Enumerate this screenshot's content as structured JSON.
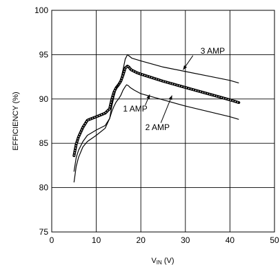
{
  "chart_data": {
    "type": "line",
    "xlabel_main": "V",
    "xlabel_sub": "IN",
    "xlabel_unit": " (V)",
    "ylabel": "EFFICIENCY (%)",
    "xlim": [
      0,
      50
    ],
    "ylim": [
      75,
      100
    ],
    "x_ticks": [
      0,
      10,
      20,
      30,
      40,
      50
    ],
    "y_ticks": [
      75,
      80,
      85,
      90,
      95,
      100
    ],
    "grid": true,
    "series": [
      {
        "name": "1 AMP",
        "style": "thin",
        "x": [
          5,
          5.5,
          6,
          7,
          8,
          10,
          12,
          13,
          13.5,
          14,
          14.5,
          15,
          15.5,
          16,
          16.5,
          16.8,
          17.2,
          17.6,
          18.5,
          20,
          25,
          30,
          35,
          40,
          42
        ],
        "y": [
          81.8,
          83.4,
          84.2,
          85.2,
          85.9,
          86.5,
          87.0,
          87.8,
          88.6,
          89.2,
          89.7,
          90.0,
          90.4,
          91.0,
          91.4,
          91.6,
          91.5,
          91.3,
          91.0,
          90.6,
          89.9,
          89.2,
          88.6,
          88.0,
          87.7
        ]
      },
      {
        "name": "2 AMP",
        "style": "bold",
        "x": [
          5,
          5.5,
          6,
          7,
          8,
          9,
          10,
          11,
          12,
          13,
          13.5,
          14,
          14.5,
          15,
          15.5,
          16,
          16.5,
          17,
          17.3,
          17.8,
          19,
          20,
          25,
          30,
          35,
          40,
          42
        ],
        "y": [
          83.6,
          84.9,
          85.7,
          86.8,
          87.6,
          87.8,
          88.0,
          88.2,
          88.4,
          88.9,
          90.0,
          90.8,
          91.3,
          91.6,
          92.0,
          92.7,
          93.5,
          93.7,
          93.6,
          93.3,
          93.0,
          92.8,
          92.0,
          91.3,
          90.6,
          89.9,
          89.6
        ]
      },
      {
        "name": "3 AMP",
        "style": "thin",
        "x": [
          5,
          5.5,
          6,
          7,
          8,
          10,
          12,
          13,
          13.5,
          14,
          14.5,
          15,
          15.5,
          16,
          16.5,
          17,
          17.5,
          18,
          20,
          25,
          30,
          35,
          40,
          42
        ],
        "y": [
          80.6,
          82.4,
          83.4,
          84.6,
          85.2,
          85.9,
          86.7,
          87.8,
          89.2,
          90.3,
          91.2,
          91.7,
          92.2,
          93.3,
          94.5,
          95.0,
          94.8,
          94.6,
          94.3,
          93.6,
          93.1,
          92.6,
          92.1,
          91.8
        ]
      }
    ],
    "annotations": [
      {
        "text": "3 AMP",
        "tx": 33.4,
        "ty": 95.1,
        "ax": 31.7,
        "ay": 94.9,
        "bx": 29.5,
        "by": 93.3
      },
      {
        "text": "1 AMP",
        "tx": 16.0,
        "ty": 88.6,
        "ax": 21.0,
        "ay": 89.3,
        "bx": 22.0,
        "by": 90.5
      },
      {
        "text": "2 AMP",
        "tx": 21.0,
        "ty": 86.5,
        "ax": 24.5,
        "ay": 87.3,
        "bx": 27.0,
        "by": 90.4
      }
    ]
  }
}
